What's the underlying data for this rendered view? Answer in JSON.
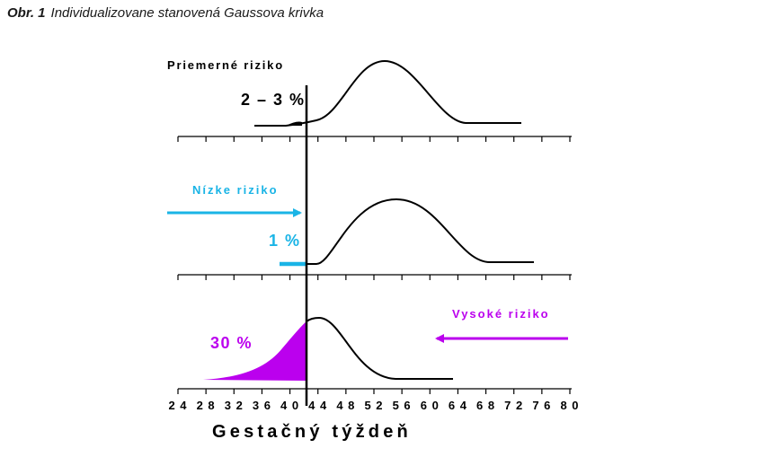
{
  "caption": {
    "figure_number": "Obr. 1",
    "title": "Individualizovane stanovená Gaussova krivka"
  },
  "colors": {
    "line": "#000000",
    "low_risk": "#1ab4e6",
    "high_risk": "#bb00ee"
  },
  "panels": {
    "average": {
      "label": "Priemerné riziko",
      "value": "2 – 3 %"
    },
    "low": {
      "label": "Nízke riziko",
      "value": "1 %"
    },
    "high": {
      "label": "Vysoké riziko",
      "value": "30 %"
    }
  },
  "chart_data": {
    "type": "area",
    "xlabel": "Gestačný týždeň",
    "xlim": [
      24,
      80
    ],
    "x_ticks": [
      24,
      28,
      32,
      36,
      40,
      44,
      48,
      52,
      56,
      60,
      64,
      68,
      72,
      76,
      80
    ],
    "threshold_week": 42,
    "series": [
      {
        "name": "Priemerné riziko",
        "peak_week": 54,
        "start_week": 34,
        "end_week": 73,
        "shaded_fraction": "2 – 3 %"
      },
      {
        "name": "Nízke riziko",
        "peak_week": 55.5,
        "start_week": 42,
        "end_week": 75,
        "shaded_fraction": "1 %"
      },
      {
        "name": "Vysoké riziko",
        "peak_week": 43,
        "start_week": 28,
        "end_week": 63,
        "shaded_fraction": "30 %"
      }
    ]
  }
}
